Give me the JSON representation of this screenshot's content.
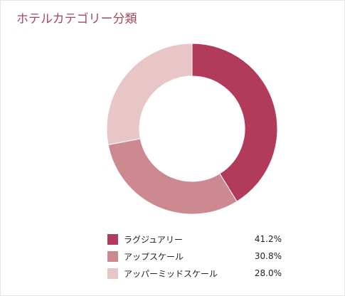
{
  "chart_data": {
    "type": "pie",
    "title": "ホテルカテゴリー分類",
    "categories": [
      "ラグジュアリー",
      "アップスケール",
      "アッパーミッドスケール"
    ],
    "values": [
      41.2,
      30.8,
      28.0
    ],
    "value_labels": [
      "41.2%",
      "30.8%",
      "28.0%"
    ],
    "colors": [
      "#b23a5b",
      "#cd8990",
      "#e8c5c7"
    ],
    "donut": true,
    "legend_position": "bottom"
  }
}
